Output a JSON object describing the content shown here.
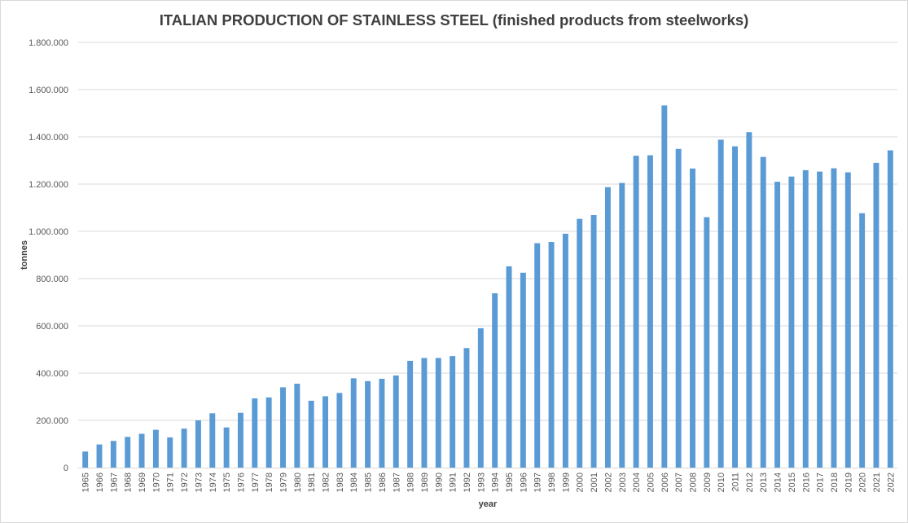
{
  "chart_data": {
    "type": "bar",
    "title": "ITALIAN PRODUCTION OF STAINLESS STEEL (finished products from steelworks)",
    "xlabel": "year",
    "ylabel": "tonnes",
    "ylim": [
      0,
      1800000
    ],
    "yticks": [
      {
        "value": 0,
        "label": "0"
      },
      {
        "value": 200000,
        "label": "200.000"
      },
      {
        "value": 400000,
        "label": "400.000"
      },
      {
        "value": 600000,
        "label": "600.000"
      },
      {
        "value": 800000,
        "label": "800.000"
      },
      {
        "value": 1000000,
        "label": "1.000.000"
      },
      {
        "value": 1200000,
        "label": "1.200.000"
      },
      {
        "value": 1400000,
        "label": "1.400.000"
      },
      {
        "value": 1600000,
        "label": "1.600.000"
      },
      {
        "value": 1800000,
        "label": "1.800.000"
      }
    ],
    "grid": true,
    "legend": "none",
    "bar_color": "#5b9bd5",
    "categories": [
      "1965",
      "1966",
      "1967",
      "1968",
      "1969",
      "1970",
      "1971",
      "1972",
      "1973",
      "1974",
      "1975",
      "1976",
      "1977",
      "1978",
      "1979",
      "1980",
      "1981",
      "1982",
      "1983",
      "1984",
      "1985",
      "1986",
      "1987",
      "1988",
      "1989",
      "1990",
      "1991",
      "1992",
      "1993",
      "1994",
      "1995",
      "1996",
      "1997",
      "1998",
      "1999",
      "2000",
      "2001",
      "2002",
      "2003",
      "2004",
      "2005",
      "2006",
      "2007",
      "2008",
      "2009",
      "2010",
      "2011",
      "2012",
      "2013",
      "2014",
      "2015",
      "2016",
      "2017",
      "2018",
      "2019",
      "2020",
      "2021",
      "2022"
    ],
    "values": [
      68000,
      98000,
      113000,
      130000,
      143000,
      160000,
      128000,
      165000,
      200000,
      230000,
      170000,
      232000,
      293000,
      297000,
      340000,
      355000,
      283000,
      302000,
      316000,
      378000,
      366000,
      376000,
      390000,
      452000,
      464000,
      464000,
      472000,
      506000,
      590000,
      738000,
      852000,
      825000,
      950000,
      955000,
      990000,
      1053000,
      1069000,
      1187000,
      1205000,
      1320000,
      1322000,
      1533000,
      1349000,
      1266000,
      1060000,
      1388000,
      1360000,
      1420000,
      1315000,
      1210000,
      1232000,
      1259000,
      1253000,
      1267000,
      1250000,
      1077000,
      1290000,
      1343000
    ]
  }
}
